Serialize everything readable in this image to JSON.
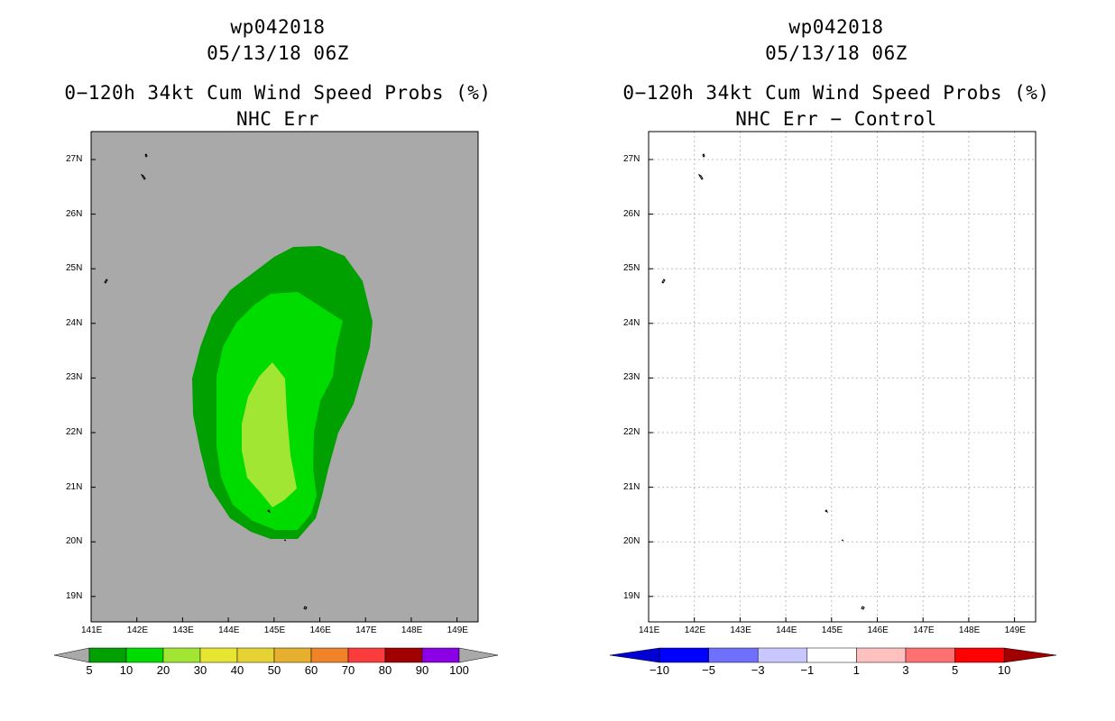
{
  "left_panel": {
    "title_storm": "wp042018",
    "title_time": "05/13/18 06Z",
    "title_product": "0−120h 34kt Cum Wind Speed Probs (%)",
    "title_sub": "NHC Err",
    "lat_labels": [
      "27N",
      "26N",
      "25N",
      "24N",
      "23N",
      "22N",
      "21N",
      "20N",
      "19N"
    ],
    "lon_labels": [
      "141E",
      "142E",
      "143E",
      "144E",
      "145E",
      "146E",
      "147E",
      "148E",
      "149E"
    ],
    "background_color": "#a9a9a9",
    "contour_levels": [
      {
        "min": 5,
        "color": "#00a000"
      },
      {
        "min": 10,
        "color": "#00dc00"
      },
      {
        "min": 20,
        "color": "#a0e632"
      }
    ],
    "colorbar_labels": [
      "5",
      "10",
      "20",
      "30",
      "40",
      "50",
      "60",
      "70",
      "80",
      "90",
      "100"
    ],
    "colorbar_colors": [
      "#00a000",
      "#00dc00",
      "#a0e632",
      "#e6e632",
      "#e6d232",
      "#e6af2d",
      "#f08228",
      "#fa3c3c",
      "#a00000",
      "#8c00e6"
    ]
  },
  "right_panel": {
    "title_storm": "wp042018",
    "title_time": "05/13/18 06Z",
    "title_product": "0−120h 34kt Cum Wind Speed Probs (%)",
    "title_sub": "NHC Err − Control",
    "lat_labels": [
      "27N",
      "26N",
      "25N",
      "24N",
      "23N",
      "22N",
      "21N",
      "20N",
      "19N"
    ],
    "lon_labels": [
      "141E",
      "142E",
      "143E",
      "144E",
      "145E",
      "146E",
      "147E",
      "148E",
      "149E"
    ],
    "background_color": "#ffffff",
    "colorbar_labels": [
      "−10",
      "−5",
      "−3",
      "−1",
      "1",
      "3",
      "5",
      "10"
    ],
    "colorbar_colors": [
      "#0000d2",
      "#0000ff",
      "#7070ff",
      "#c8c8ff",
      "#ffffff",
      "#ffc0c0",
      "#ff7070",
      "#ff0000",
      "#a00000"
    ]
  }
}
